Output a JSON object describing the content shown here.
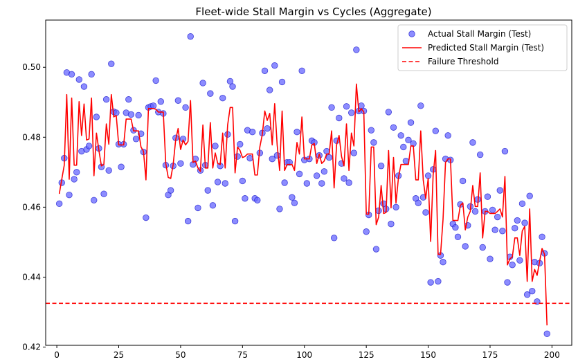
{
  "chart_data": {
    "type": "scatter+line",
    "title": "Fleet-wide Stall Margin vs Cycles (Aggregate)",
    "xlabel": "",
    "ylabel": "",
    "xlim": [
      -4.5,
      208
    ],
    "ylim": [
      0.4205,
      0.5135
    ],
    "x_ticks": [
      0,
      25,
      50,
      75,
      100,
      125,
      150,
      175,
      200
    ],
    "x_tick_labels": [
      "0",
      "25",
      "50",
      "75",
      "100",
      "125",
      "150",
      "175",
      "200"
    ],
    "y_ticks": [
      0.42,
      0.44,
      0.46,
      0.48,
      0.5
    ],
    "y_tick_labels": [
      "0.42",
      "0.44",
      "0.46",
      "0.48",
      "0.50"
    ],
    "grid": false,
    "legend_position": "top-right",
    "legend": [
      {
        "label": "Actual Stall Margin (Test)",
        "kind": "scatter"
      },
      {
        "label": "Predicted Stall Margin (Test)",
        "kind": "line"
      },
      {
        "label": "Failure Threshold",
        "kind": "dashed"
      }
    ],
    "colors": {
      "scatter_fill": "#6666ff",
      "scatter_edge": "#1f1fcf",
      "line": "#ff0000",
      "threshold": "#ff0000"
    },
    "threshold": {
      "name": "Failure Threshold",
      "value": 0.4325
    },
    "series": [
      {
        "name": "Actual Stall Margin (Test)",
        "type": "scatter",
        "x": [
          1,
          2,
          3,
          4,
          5,
          6,
          7,
          8,
          9,
          10,
          11,
          12,
          13,
          14,
          15,
          16,
          17,
          18,
          19,
          20,
          21,
          22,
          23,
          24,
          25,
          26,
          27,
          28,
          29,
          30,
          31,
          32,
          33,
          34,
          35,
          36,
          37,
          38,
          39,
          40,
          41,
          42,
          43,
          44,
          45,
          46,
          47,
          48,
          49,
          50,
          51,
          52,
          53,
          54,
          55,
          56,
          57,
          58,
          59,
          60,
          61,
          62,
          63,
          64,
          65,
          66,
          67,
          68,
          69,
          70,
          71,
          72,
          73,
          74,
          75,
          76,
          77,
          78,
          79,
          80,
          81,
          82,
          83,
          84,
          85,
          86,
          87,
          88,
          89,
          90,
          91,
          92,
          93,
          94,
          95,
          96,
          97,
          98,
          99,
          100,
          101,
          102,
          103,
          104,
          105,
          106,
          107,
          108,
          109,
          110,
          111,
          112,
          113,
          114,
          115,
          116,
          117,
          118,
          119,
          120,
          121,
          122,
          123,
          124,
          125,
          126,
          127,
          128,
          129,
          130,
          131,
          132,
          133,
          134,
          135,
          136,
          137,
          138,
          139,
          140,
          141,
          142,
          143,
          144,
          145,
          146,
          147,
          148,
          149,
          150,
          151,
          152,
          153,
          154,
          155,
          156,
          157,
          158,
          159,
          160,
          161,
          162,
          163,
          164,
          165,
          166,
          167,
          168,
          169,
          170,
          171,
          172,
          173,
          174,
          175,
          176,
          177,
          178,
          179,
          180,
          181,
          182,
          183,
          184,
          185,
          186,
          187,
          188,
          189,
          190,
          191,
          192,
          193,
          194,
          195,
          196,
          197,
          198
        ],
        "y": [
          0.461,
          0.467,
          0.474,
          0.4985,
          0.4635,
          0.498,
          0.468,
          0.47,
          0.4965,
          0.476,
          0.4945,
          0.4765,
          0.4775,
          0.498,
          0.462,
          0.4858,
          0.4768,
          0.4715,
          0.4638,
          0.4908,
          0.4705,
          0.501,
          0.4873,
          0.487,
          0.478,
          0.4715,
          0.478,
          0.487,
          0.4908,
          0.4865,
          0.482,
          0.4795,
          0.4863,
          0.481,
          0.4758,
          0.457,
          0.4885,
          0.4888,
          0.489,
          0.4962,
          0.4872,
          0.4902,
          0.4868,
          0.472,
          0.4635,
          0.4648,
          0.4718,
          0.4798,
          0.4905,
          0.4725,
          0.4795,
          0.4885,
          0.456,
          0.5088,
          0.4722,
          0.4738,
          0.4598,
          0.4705,
          0.4955,
          0.472,
          0.4648,
          0.4925,
          0.4605,
          0.4775,
          0.4672,
          0.4718,
          0.4912,
          0.4668,
          0.4808,
          0.496,
          0.4945,
          0.456,
          0.4745,
          0.478,
          0.4675,
          0.4625,
          0.482,
          0.474,
          0.4815,
          0.4625,
          0.462,
          0.4755,
          0.4812,
          0.499,
          0.4825,
          0.4935,
          0.4738,
          0.5005,
          0.4748,
          0.4595,
          0.4958,
          0.467,
          0.4728,
          0.4728,
          0.4628,
          0.4612,
          0.4815,
          0.4695,
          0.499,
          0.4735,
          0.4668,
          0.4738,
          0.479,
          0.4785,
          0.469,
          0.4748,
          0.4668,
          0.4702,
          0.476,
          0.4742,
          0.4885,
          0.4512,
          0.479,
          0.4855,
          0.4725,
          0.4682,
          0.4888,
          0.467,
          0.487,
          0.4755,
          0.505,
          0.4875,
          0.489,
          0.4875,
          0.453,
          0.4578,
          0.482,
          0.4785,
          0.448,
          0.459,
          0.4718,
          0.461,
          0.4595,
          0.4872,
          0.4552,
          0.4828,
          0.46,
          0.469,
          0.4805,
          0.4772,
          0.4732,
          0.4792,
          0.4842,
          0.4782,
          0.4625,
          0.4612,
          0.489,
          0.4628,
          0.4585,
          0.469,
          0.4385,
          0.4708,
          0.4818,
          0.4388,
          0.4462,
          0.4443,
          0.4738,
          0.4805,
          0.4735,
          0.4552,
          0.4542,
          0.4515,
          0.4608,
          0.4675,
          0.4488,
          0.4548,
          0.4602,
          0.4785,
          0.4588,
          0.4622,
          0.475,
          0.4485,
          0.4588,
          0.463,
          0.4452,
          0.4592,
          0.4535,
          0.4572,
          0.4648,
          0.4532,
          0.476,
          0.4385,
          0.4458,
          0.4435,
          0.454,
          0.4562,
          0.4448,
          0.461,
          0.4555,
          0.435,
          0.4632,
          0.436,
          0.4443,
          0.433,
          0.444,
          0.4515,
          0.4468,
          0.4238
        ]
      },
      {
        "name": "Predicted Stall Margin (Test)",
        "type": "line",
        "x": [
          1,
          2,
          3,
          4,
          5,
          6,
          7,
          8,
          9,
          10,
          11,
          12,
          13,
          14,
          15,
          16,
          17,
          18,
          19,
          20,
          21,
          22,
          23,
          24,
          25,
          26,
          27,
          28,
          29,
          30,
          31,
          32,
          33,
          34,
          35,
          36,
          37,
          38,
          39,
          40,
          41,
          42,
          43,
          44,
          45,
          46,
          47,
          48,
          49,
          50,
          51,
          52,
          53,
          54,
          55,
          56,
          57,
          58,
          59,
          60,
          61,
          62,
          63,
          64,
          65,
          66,
          67,
          68,
          69,
          70,
          71,
          72,
          73,
          74,
          75,
          76,
          77,
          78,
          79,
          80,
          81,
          82,
          83,
          84,
          85,
          86,
          87,
          88,
          89,
          90,
          91,
          92,
          93,
          94,
          95,
          96,
          97,
          98,
          99,
          100,
          101,
          102,
          103,
          104,
          105,
          106,
          107,
          108,
          109,
          110,
          111,
          112,
          113,
          114,
          115,
          116,
          117,
          118,
          119,
          120,
          121,
          122,
          123,
          124,
          125,
          126,
          127,
          128,
          129,
          130,
          131,
          132,
          133,
          134,
          135,
          136,
          137,
          138,
          139,
          140,
          141,
          142,
          143,
          144,
          145,
          146,
          147,
          148,
          149,
          150,
          151,
          152,
          153,
          154,
          155,
          156,
          157,
          158,
          159,
          160,
          161,
          162,
          163,
          164,
          165,
          166,
          167,
          168,
          169,
          170,
          171,
          172,
          173,
          174,
          175,
          176,
          177,
          178,
          179,
          180,
          181,
          182,
          183,
          184,
          185,
          186,
          187,
          188,
          189,
          190,
          191,
          192,
          193,
          194,
          195,
          196,
          197,
          198
        ],
        "y": [
          0.4638,
          0.468,
          0.472,
          0.4922,
          0.468,
          0.4912,
          0.472,
          0.472,
          0.4902,
          0.4805,
          0.4895,
          0.4792,
          0.4795,
          0.4912,
          0.469,
          0.4812,
          0.4762,
          0.4718,
          0.4722,
          0.4838,
          0.478,
          0.4922,
          0.4858,
          0.4862,
          0.4778,
          0.4778,
          0.4778,
          0.4852,
          0.4852,
          0.4852,
          0.4818,
          0.4818,
          0.4818,
          0.4772,
          0.476,
          0.4678,
          0.4882,
          0.4882,
          0.4882,
          0.488,
          0.4872,
          0.4872,
          0.4872,
          0.4725,
          0.4685,
          0.4682,
          0.4722,
          0.4792,
          0.4825,
          0.4765,
          0.4792,
          0.4778,
          0.4788,
          0.4905,
          0.4728,
          0.4732,
          0.4712,
          0.4702,
          0.4835,
          0.4712,
          0.4712,
          0.4842,
          0.4712,
          0.4755,
          0.4725,
          0.4722,
          0.4812,
          0.4712,
          0.4835,
          0.4885,
          0.4885,
          0.4698,
          0.4772,
          0.4762,
          0.4742,
          0.4745,
          0.4752,
          0.4752,
          0.4752,
          0.4692,
          0.4692,
          0.4772,
          0.4808,
          0.4875,
          0.4848,
          0.4868,
          0.4778,
          0.4896,
          0.4778,
          0.4705,
          0.4875,
          0.4705,
          0.4722,
          0.4722,
          0.4722,
          0.4705,
          0.4785,
          0.4752,
          0.4858,
          0.4738,
          0.4738,
          0.4738,
          0.4778,
          0.4782,
          0.4725,
          0.4752,
          0.4725,
          0.4732,
          0.4752,
          0.4752,
          0.4818,
          0.4655,
          0.4778,
          0.4805,
          0.4745,
          0.4718,
          0.4838,
          0.4705,
          0.4812,
          0.4775,
          0.4952,
          0.4872,
          0.4882,
          0.4872,
          0.458,
          0.458,
          0.4772,
          0.4772,
          0.455,
          0.4572,
          0.4662,
          0.4582,
          0.4585,
          0.4762,
          0.4598,
          0.4742,
          0.4612,
          0.4685,
          0.4722,
          0.4722,
          0.4722,
          0.4722,
          0.4775,
          0.4775,
          0.4678,
          0.4678,
          0.4818,
          0.4678,
          0.4625,
          0.4682,
          0.4502,
          0.4692,
          0.4762,
          0.4465,
          0.4465,
          0.4565,
          0.4728,
          0.4738,
          0.4738,
          0.4562,
          0.4562,
          0.4562,
          0.4605,
          0.4612,
          0.4535,
          0.4572,
          0.4588,
          0.4662,
          0.4602,
          0.4602,
          0.4698,
          0.4512,
          0.4588,
          0.4588,
          0.4582,
          0.4582,
          0.4582,
          0.4588,
          0.4595,
          0.4572,
          0.4688,
          0.4435,
          0.4452,
          0.4458,
          0.4512,
          0.4512,
          0.4462,
          0.4532,
          0.4545,
          0.4388,
          0.4595,
          0.4388,
          0.4422,
          0.4405,
          0.4445,
          0.4482,
          0.4465,
          0.4262
        ]
      }
    ]
  }
}
